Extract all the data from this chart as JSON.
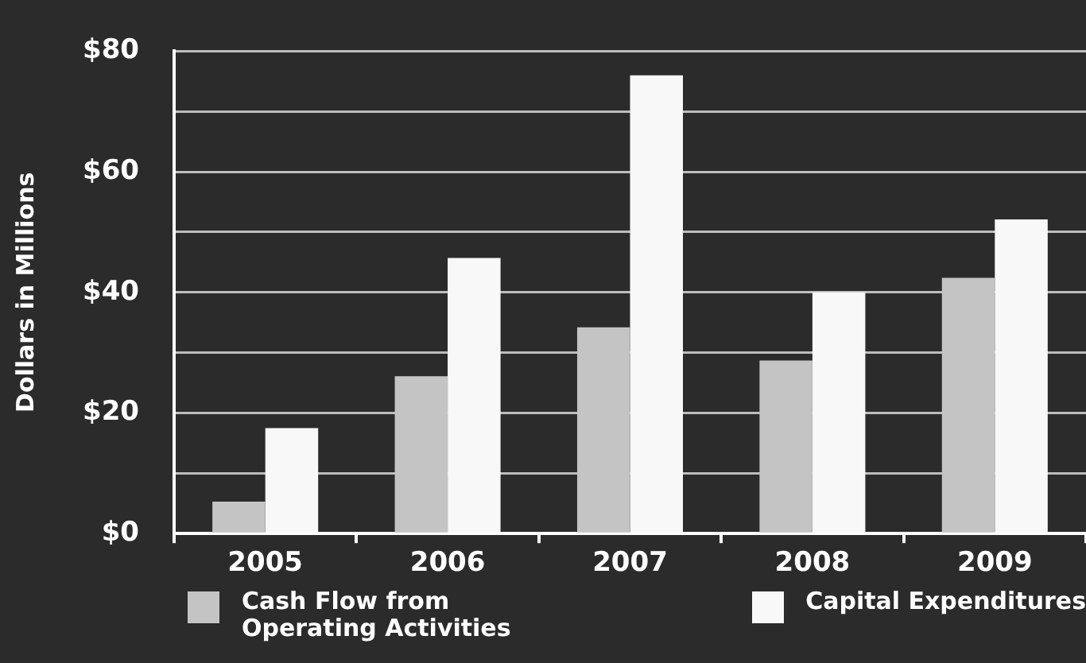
{
  "chart_data": {
    "type": "bar",
    "ylabel": "Dollars in Millions",
    "categories": [
      "2005",
      "2006",
      "2007",
      "2008",
      "2009"
    ],
    "series": [
      {
        "name": "Cash Flow from Operating Activities",
        "color": "#c4c4c4",
        "values": [
          5.3,
          26.1,
          34.2,
          28.7,
          42.4
        ]
      },
      {
        "name": "Capital Expenditures",
        "color": "#f8f8f8",
        "values": [
          17.5,
          45.7,
          76.0,
          40.0,
          52.1
        ]
      }
    ],
    "ylim": [
      0,
      80
    ],
    "yticks": [
      {
        "value": 0,
        "label": "$0"
      },
      {
        "value": 10,
        "label": null
      },
      {
        "value": 20,
        "label": "$20"
      },
      {
        "value": 30,
        "label": null
      },
      {
        "value": 40,
        "label": "$40"
      },
      {
        "value": 50,
        "label": null
      },
      {
        "value": 60,
        "label": "$60"
      },
      {
        "value": 70,
        "label": null
      },
      {
        "value": 80,
        "label": "$80"
      }
    ],
    "grid": "y",
    "legend": "bottom"
  }
}
